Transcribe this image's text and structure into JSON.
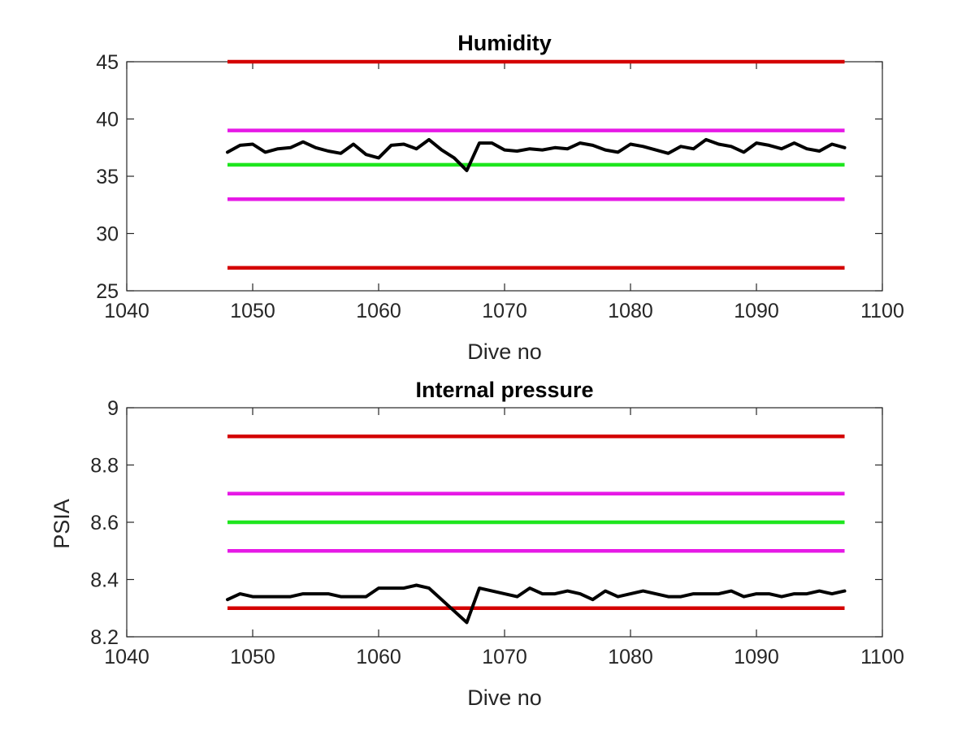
{
  "chart_data": [
    {
      "type": "line",
      "title": "Humidity",
      "xlabel": "Dive no",
      "ylabel": "",
      "xlim": [
        1040,
        1100
      ],
      "ylim": [
        25,
        45
      ],
      "xticks": [
        "1040",
        "1050",
        "1060",
        "1070",
        "1080",
        "1090",
        "1100"
      ],
      "yticks": [
        "25",
        "30",
        "35",
        "40",
        "45"
      ],
      "grid": false,
      "reference_lines": [
        {
          "y": 45,
          "x": [
            1048,
            1097
          ],
          "color": "#d40000"
        },
        {
          "y": 39,
          "x": [
            1048,
            1097
          ],
          "color": "#e619e6"
        },
        {
          "y": 36,
          "x": [
            1048,
            1097
          ],
          "color": "#1ee61e"
        },
        {
          "y": 33,
          "x": [
            1048,
            1097
          ],
          "color": "#e619e6"
        },
        {
          "y": 27,
          "x": [
            1048,
            1097
          ],
          "color": "#d40000"
        }
      ],
      "series": [
        {
          "color": "#000000",
          "x": [
            1048,
            1049,
            1050,
            1051,
            1052,
            1053,
            1054,
            1055,
            1056,
            1057,
            1058,
            1059,
            1060,
            1061,
            1062,
            1063,
            1064,
            1065,
            1066,
            1067,
            1068,
            1069,
            1070,
            1071,
            1072,
            1073,
            1074,
            1075,
            1076,
            1077,
            1078,
            1079,
            1080,
            1081,
            1082,
            1083,
            1084,
            1085,
            1086,
            1087,
            1088,
            1089,
            1090,
            1091,
            1092,
            1093,
            1094,
            1095,
            1096,
            1097
          ],
          "values": [
            37.1,
            37.7,
            37.8,
            37.1,
            37.4,
            37.5,
            38.0,
            37.5,
            37.2,
            37.0,
            37.8,
            36.9,
            36.6,
            37.7,
            37.8,
            37.4,
            38.2,
            37.3,
            36.6,
            35.5,
            37.9,
            37.9,
            37.3,
            37.2,
            37.4,
            37.3,
            37.5,
            37.4,
            37.9,
            37.7,
            37.3,
            37.1,
            37.8,
            37.6,
            37.3,
            37.0,
            37.6,
            37.4,
            38.2,
            37.8,
            37.6,
            37.1,
            37.9,
            37.7,
            37.4,
            37.9,
            37.4,
            37.2,
            37.8,
            37.5
          ]
        }
      ]
    },
    {
      "type": "line",
      "title": "Internal pressure",
      "xlabel": "Dive no",
      "ylabel": "PSIA",
      "xlim": [
        1040,
        1100
      ],
      "ylim": [
        8.2,
        9.0
      ],
      "xticks": [
        "1040",
        "1050",
        "1060",
        "1070",
        "1080",
        "1090",
        "1100"
      ],
      "yticks": [
        "8.2",
        "8.4",
        "8.6",
        "8.8",
        "9"
      ],
      "grid": false,
      "reference_lines": [
        {
          "y": 8.9,
          "x": [
            1048,
            1097
          ],
          "color": "#d40000"
        },
        {
          "y": 8.7,
          "x": [
            1048,
            1097
          ],
          "color": "#e619e6"
        },
        {
          "y": 8.6,
          "x": [
            1048,
            1097
          ],
          "color": "#1ee61e"
        },
        {
          "y": 8.5,
          "x": [
            1048,
            1097
          ],
          "color": "#e619e6"
        },
        {
          "y": 8.3,
          "x": [
            1048,
            1097
          ],
          "color": "#d40000"
        }
      ],
      "series": [
        {
          "color": "#000000",
          "x": [
            1048,
            1049,
            1050,
            1051,
            1052,
            1053,
            1054,
            1055,
            1056,
            1057,
            1058,
            1059,
            1060,
            1061,
            1062,
            1063,
            1064,
            1065,
            1066,
            1067,
            1068,
            1069,
            1070,
            1071,
            1072,
            1073,
            1074,
            1075,
            1076,
            1077,
            1078,
            1079,
            1080,
            1081,
            1082,
            1083,
            1084,
            1085,
            1086,
            1087,
            1088,
            1089,
            1090,
            1091,
            1092,
            1093,
            1094,
            1095,
            1096,
            1097
          ],
          "values": [
            8.33,
            8.35,
            8.34,
            8.34,
            8.34,
            8.34,
            8.35,
            8.35,
            8.35,
            8.34,
            8.34,
            8.34,
            8.37,
            8.37,
            8.37,
            8.38,
            8.37,
            8.33,
            8.29,
            8.25,
            8.37,
            8.36,
            8.35,
            8.34,
            8.37,
            8.35,
            8.35,
            8.36,
            8.35,
            8.33,
            8.36,
            8.34,
            8.35,
            8.36,
            8.35,
            8.34,
            8.34,
            8.35,
            8.35,
            8.35,
            8.36,
            8.34,
            8.35,
            8.35,
            8.34,
            8.35,
            8.35,
            8.36,
            8.35,
            8.36
          ]
        }
      ]
    }
  ]
}
